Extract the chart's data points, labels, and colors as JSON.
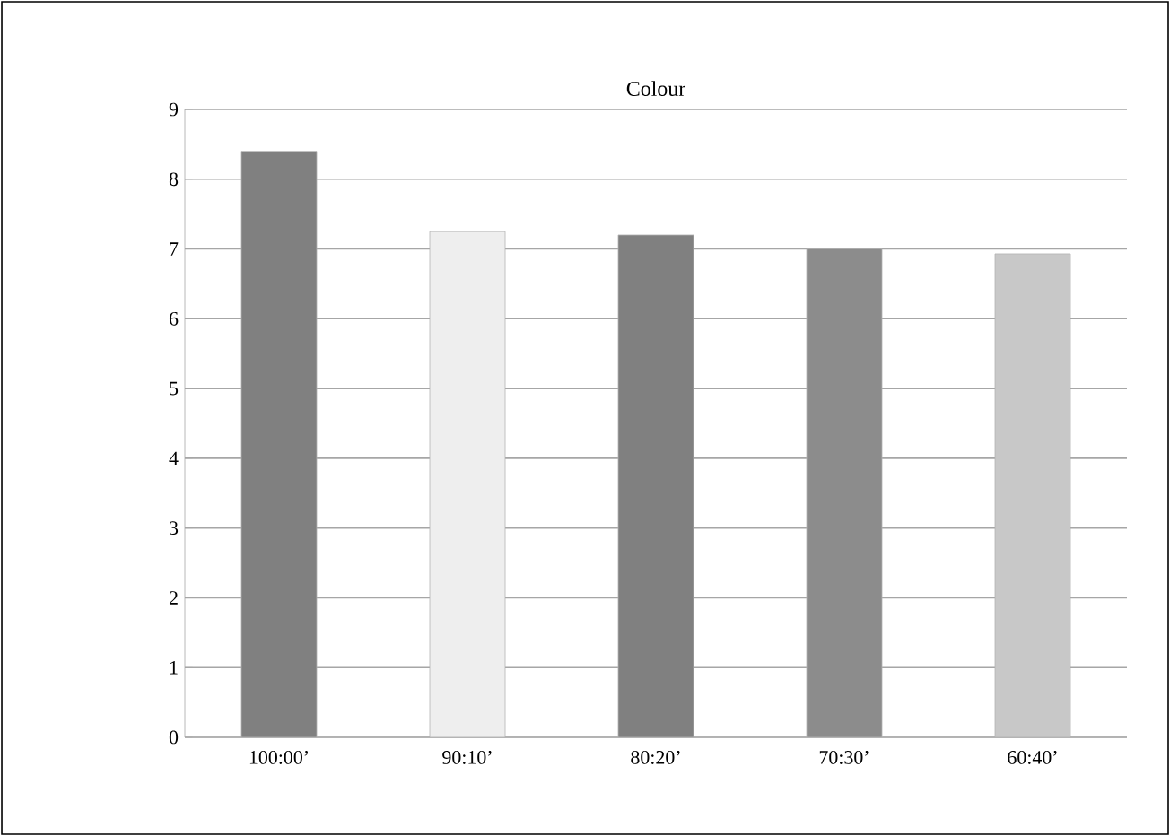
{
  "chart_data": {
    "type": "bar",
    "title": "Colour",
    "categories": [
      "100:00’",
      "90:10’",
      "80:20’",
      "70:30’",
      "60:40’"
    ],
    "values": [
      8.4,
      7.25,
      7.2,
      7.0,
      6.93
    ],
    "colors": [
      "#808080",
      "#eeeeee",
      "#808080",
      "#8c8c8c",
      "#c8c8c8"
    ],
    "ylim": [
      0,
      9
    ],
    "yticks": [
      0,
      1,
      2,
      3,
      4,
      5,
      6,
      7,
      8,
      9
    ],
    "grid": "y"
  }
}
